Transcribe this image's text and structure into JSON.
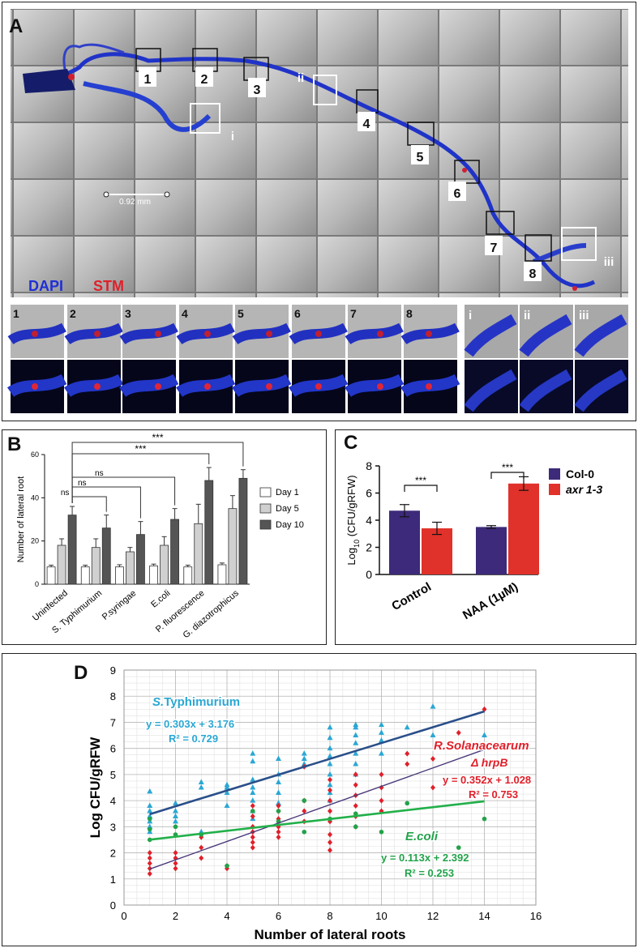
{
  "panelA": {
    "label": "A",
    "scale_bar": "0.92 mm",
    "stain_dapi": "DAPI",
    "stain_stm": "STM",
    "boxes_numbered": [
      "1",
      "2",
      "3",
      "4",
      "5",
      "6",
      "7",
      "8"
    ],
    "boxes_roman": [
      "i",
      "ii",
      "iii"
    ],
    "thumbs_numbered": [
      "1",
      "2",
      "3",
      "4",
      "5",
      "6",
      "7",
      "8"
    ],
    "thumbs_roman": [
      "i",
      "ii",
      "iii"
    ],
    "colors": {
      "dapi": "#1f2fd6",
      "stm": "#e0202a"
    }
  },
  "panelB": {
    "label": "B",
    "chart_data": {
      "type": "bar",
      "ylabel": "Number of lateral root",
      "ylim": [
        0,
        60
      ],
      "yticks": [
        "0",
        "20",
        "40",
        "60"
      ],
      "categories": [
        "Uninfected",
        "S. Typhimurium",
        "P.syringae",
        "E.coli",
        "P. fluorescence",
        "G. diazotrophicus"
      ],
      "series": [
        {
          "name": "Day 1",
          "color": "#ffffff",
          "values": [
            8,
            8,
            8,
            8.5,
            8,
            9
          ],
          "errors": [
            0.8,
            0.8,
            1,
            0.8,
            0.8,
            0.8
          ]
        },
        {
          "name": "Day 5",
          "color": "#d0d0d0",
          "values": [
            18,
            17,
            15,
            18,
            28,
            35
          ],
          "errors": [
            3,
            4,
            2,
            4,
            9,
            6
          ]
        },
        {
          "name": "Day 10",
          "color": "#555555",
          "values": [
            32,
            26,
            23,
            30,
            48,
            49
          ],
          "errors": [
            4,
            6,
            6,
            5,
            6,
            4
          ]
        }
      ],
      "significance": [
        "***",
        "***",
        "ns",
        "ns",
        "ns"
      ],
      "legend_position": "right"
    }
  },
  "panelC": {
    "label": "C",
    "chart_data": {
      "type": "bar",
      "ylabel": "Log10 (CFU/gRFW)",
      "ylabel_prefix": "Log",
      "ylabel_sub": "10",
      "ylabel_suffix": " (CFU/gRFW)",
      "ylim": [
        0,
        8
      ],
      "yticks": [
        "0",
        "2",
        "4",
        "6",
        "8"
      ],
      "categories": [
        "Control",
        "NAA (1µM)"
      ],
      "series": [
        {
          "name": "Col-0",
          "color": "#3d2a7a",
          "values": [
            4.7,
            3.5
          ],
          "errors": [
            0.45,
            0.1
          ]
        },
        {
          "name": "axr 1-3",
          "color": "#e0312a",
          "values": [
            3.4,
            6.7
          ],
          "errors": [
            0.45,
            0.5
          ]
        }
      ],
      "significance": [
        "***",
        "***"
      ],
      "legend_position": "right"
    }
  },
  "panelD": {
    "label": "D",
    "chart_data": {
      "type": "scatter",
      "xlabel": "Number of lateral roots",
      "ylabel": "Log CFU/gRFW",
      "xlim": [
        0,
        16
      ],
      "ylim": [
        0,
        9
      ],
      "xticks": [
        "0",
        "2",
        "4",
        "6",
        "8",
        "10",
        "12",
        "14",
        "16"
      ],
      "yticks": [
        "0",
        "1",
        "2",
        "3",
        "4",
        "5",
        "6",
        "7",
        "8",
        "9"
      ],
      "grid": true,
      "series": [
        {
          "name": "S.Typhimurium",
          "color": "#2aa7d4",
          "marker": "triangle",
          "equation": "y = 0.303x + 3.176",
          "r2": "R² = 0.729",
          "slope": 0.303,
          "intercept": 3.176,
          "line_color": "#2a4f8a",
          "points": [
            [
              1,
              4.35
            ],
            [
              1,
              3.8
            ],
            [
              1,
              3.6
            ],
            [
              1,
              3.4
            ],
            [
              1,
              3.2
            ],
            [
              1,
              3.0
            ],
            [
              1,
              2.8
            ],
            [
              2,
              3.9
            ],
            [
              2,
              3.6
            ],
            [
              2,
              3.4
            ],
            [
              2,
              3.2
            ],
            [
              3,
              4.7
            ],
            [
              3,
              4.5
            ],
            [
              3,
              2.8
            ],
            [
              4,
              4.6
            ],
            [
              4,
              4.5
            ],
            [
              4,
              4.3
            ],
            [
              4,
              3.8
            ],
            [
              5,
              5.8
            ],
            [
              5,
              5.5
            ],
            [
              5,
              4.8
            ],
            [
              5,
              4.5
            ],
            [
              5,
              4.3
            ],
            [
              5,
              4.0
            ],
            [
              5,
              3.6
            ],
            [
              5,
              3.3
            ],
            [
              6,
              5.6
            ],
            [
              6,
              5.0
            ],
            [
              6,
              4.7
            ],
            [
              6,
              4.3
            ],
            [
              6,
              3.9
            ],
            [
              7,
              5.8
            ],
            [
              7,
              5.6
            ],
            [
              7,
              5.4
            ],
            [
              8,
              6.8
            ],
            [
              8,
              6.4
            ],
            [
              8,
              6.0
            ],
            [
              8,
              5.7
            ],
            [
              8,
              5.4
            ],
            [
              8,
              5.0
            ],
            [
              8,
              4.6
            ],
            [
              8,
              4.3
            ],
            [
              8,
              4.0
            ],
            [
              9,
              6.9
            ],
            [
              9,
              6.8
            ],
            [
              9,
              6.5
            ],
            [
              9,
              6.2
            ],
            [
              9,
              5.8
            ],
            [
              9,
              5.4
            ],
            [
              9,
              5.0
            ],
            [
              10,
              6.9
            ],
            [
              10,
              6.6
            ],
            [
              10,
              6.3
            ],
            [
              10,
              5.8
            ],
            [
              11,
              6.8
            ],
            [
              12,
              7.6
            ],
            [
              12,
              6.5
            ],
            [
              14,
              6.5
            ]
          ]
        },
        {
          "name": "R.Solanacearum",
          "name2": "Δ hrpB",
          "color": "#e0202a",
          "marker": "diamond",
          "equation": "y = 0.352x + 1.028",
          "r2": "R² = 0.753",
          "slope": 0.352,
          "intercept": 1.028,
          "line_color": "#4a3a7a",
          "points": [
            [
              1,
              1.2
            ],
            [
              1,
              1.4
            ],
            [
              1,
              1.6
            ],
            [
              1,
              1.8
            ],
            [
              1,
              2.0
            ],
            [
              2,
              1.4
            ],
            [
              2,
              1.6
            ],
            [
              2,
              1.8
            ],
            [
              2,
              2.0
            ],
            [
              3,
              1.8
            ],
            [
              3,
              2.2
            ],
            [
              3,
              2.6
            ],
            [
              4,
              1.4
            ],
            [
              4,
              1.5
            ],
            [
              5,
              2.2
            ],
            [
              5,
              2.4
            ],
            [
              5,
              2.6
            ],
            [
              5,
              2.8
            ],
            [
              5,
              3.0
            ],
            [
              5,
              3.4
            ],
            [
              5,
              3.8
            ],
            [
              6,
              2.6
            ],
            [
              6,
              2.8
            ],
            [
              6,
              3.0
            ],
            [
              6,
              3.3
            ],
            [
              6,
              3.6
            ],
            [
              6,
              3.8
            ],
            [
              7,
              3.2
            ],
            [
              7,
              3.6
            ],
            [
              7,
              4.0
            ],
            [
              7,
              5.3
            ],
            [
              8,
              2.1
            ],
            [
              8,
              2.4
            ],
            [
              8,
              2.7
            ],
            [
              8,
              3.2
            ],
            [
              8,
              3.6
            ],
            [
              8,
              4.0
            ],
            [
              8,
              4.4
            ],
            [
              8,
              4.8
            ],
            [
              9,
              3.0
            ],
            [
              9,
              3.4
            ],
            [
              9,
              3.8
            ],
            [
              9,
              4.2
            ],
            [
              9,
              4.6
            ],
            [
              9,
              5.0
            ],
            [
              10,
              3.6
            ],
            [
              10,
              4.0
            ],
            [
              10,
              4.5
            ],
            [
              10,
              5.0
            ],
            [
              11,
              5.4
            ],
            [
              11,
              5.8
            ],
            [
              12,
              4.5
            ],
            [
              12,
              5.6
            ],
            [
              13,
              6.6
            ],
            [
              14,
              7.5
            ]
          ]
        },
        {
          "name": "E.coli",
          "color": "#22a24a",
          "marker": "circle",
          "equation": "y = 0.113x + 2.392",
          "r2": "R² = 0.253",
          "slope": 0.113,
          "intercept": 2.392,
          "line_color": "#22b04a",
          "points": [
            [
              1,
              2.5
            ],
            [
              1,
              2.9
            ],
            [
              1,
              3.3
            ],
            [
              2,
              2.7
            ],
            [
              2,
              3.0
            ],
            [
              3,
              2.7
            ],
            [
              4,
              1.5
            ],
            [
              5,
              3.6
            ],
            [
              6,
              3.2
            ],
            [
              6,
              3.6
            ],
            [
              7,
              2.8
            ],
            [
              7,
              4.0
            ],
            [
              8,
              3.3
            ],
            [
              9,
              3.0
            ],
            [
              9,
              3.5
            ],
            [
              10,
              2.8
            ],
            [
              11,
              3.9
            ],
            [
              13,
              2.2
            ],
            [
              14,
              3.3
            ]
          ]
        }
      ]
    }
  }
}
